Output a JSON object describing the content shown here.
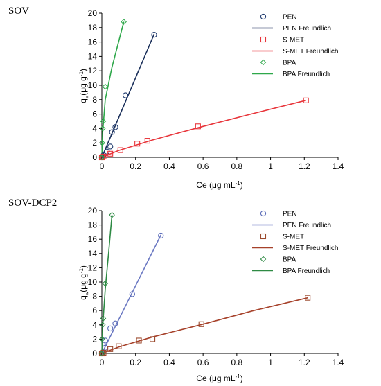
{
  "chart_data": [
    {
      "type": "scatter",
      "panel_title": "SOV",
      "xlabel": "Ce (μg mL",
      "xlabel_sup": "-1",
      "xlabel_tail": ")",
      "ylabel_main": "q",
      "ylabel_sub": "e",
      "ylabel_tail": "(μg g",
      "ylabel_sup": "-1",
      "ylabel_end": ")",
      "xlim": [
        0,
        1.4
      ],
      "ylim": [
        0,
        20
      ],
      "xticks": [
        0,
        0.2,
        0.4,
        0.6,
        0.8,
        1,
        1.2,
        1.4
      ],
      "xtick_labels": [
        "0",
        "0.2",
        "0.4",
        "0.6",
        "0.8",
        "1",
        "1.2",
        "1.4"
      ],
      "yticks": [
        0,
        2,
        4,
        6,
        8,
        10,
        12,
        14,
        16,
        18,
        20
      ],
      "ytick_labels": [
        "0",
        "2",
        "4",
        "6",
        "8",
        "10",
        "12",
        "14",
        "16",
        "18",
        "20"
      ],
      "legend_position": "top-right",
      "series": [
        {
          "name": "PEN",
          "marker": "circle",
          "color": "#1f3a6e",
          "points": [
            [
              0.0,
              0.0
            ],
            [
              0.01,
              0.3
            ],
            [
              0.03,
              0.8
            ],
            [
              0.05,
              1.5
            ],
            [
              0.06,
              3.5
            ],
            [
              0.08,
              4.2
            ],
            [
              0.14,
              8.6
            ],
            [
              0.31,
              17.0
            ]
          ]
        },
        {
          "name": "PEN Freundlich",
          "line": true,
          "color": "#1a2f5a",
          "points": [
            [
              0.0,
              0.0
            ],
            [
              0.31,
              17.1
            ]
          ]
        },
        {
          "name": "S-MET",
          "marker": "square",
          "color": "#e8343a",
          "points": [
            [
              0.0,
              0.0
            ],
            [
              0.01,
              0.1
            ],
            [
              0.05,
              0.5
            ],
            [
              0.11,
              1.0
            ],
            [
              0.21,
              1.9
            ],
            [
              0.27,
              2.3
            ],
            [
              0.57,
              4.3
            ],
            [
              1.21,
              7.9
            ]
          ]
        },
        {
          "name": "S-MET Freundlich",
          "line": true,
          "color": "#e8343a",
          "points": [
            [
              0.0,
              0.0
            ],
            [
              0.1,
              0.95
            ],
            [
              0.3,
              2.4
            ],
            [
              0.6,
              4.3
            ],
            [
              0.9,
              6.1
            ],
            [
              1.21,
              7.9
            ]
          ]
        },
        {
          "name": "BPA",
          "marker": "diamond",
          "color": "#2ea84a",
          "points": [
            [
              0.0,
              0.0
            ],
            [
              0.002,
              2.0
            ],
            [
              0.005,
              4.0
            ],
            [
              0.008,
              5.0
            ],
            [
              0.02,
              9.8
            ],
            [
              0.13,
              18.8
            ]
          ]
        },
        {
          "name": "BPA Freundlich",
          "line": true,
          "color": "#2ea84a",
          "points": [
            [
              0.0,
              0.0
            ],
            [
              0.005,
              3.5
            ],
            [
              0.02,
              8.0
            ],
            [
              0.06,
              12.5
            ],
            [
              0.13,
              18.8
            ]
          ]
        }
      ]
    },
    {
      "type": "scatter",
      "panel_title": "SOV-DCP2",
      "xlabel": "Ce (μg mL",
      "xlabel_sup": "-1",
      "xlabel_tail": ")",
      "ylabel_main": "q",
      "ylabel_sub": "e",
      "ylabel_tail": "(μg g",
      "ylabel_sup": "-1",
      "ylabel_end": ")",
      "xlim": [
        0,
        1.4
      ],
      "ylim": [
        0,
        20
      ],
      "xticks": [
        0,
        0.2,
        0.4,
        0.6,
        0.8,
        1,
        1.2,
        1.4
      ],
      "xtick_labels": [
        "0",
        "0.2",
        "0.4",
        "0.6",
        "0.8",
        "1",
        "1.2",
        "1.4"
      ],
      "yticks": [
        0,
        2,
        4,
        6,
        8,
        10,
        12,
        14,
        16,
        18,
        20
      ],
      "ytick_labels": [
        "0",
        "2",
        "4",
        "6",
        "8",
        "10",
        "12",
        "14",
        "16",
        "18",
        "20"
      ],
      "legend_position": "top-right",
      "series": [
        {
          "name": "PEN",
          "marker": "circle",
          "color": "#5b6cb8",
          "points": [
            [
              0.0,
              0.0
            ],
            [
              0.02,
              0.8
            ],
            [
              0.02,
              1.8
            ],
            [
              0.05,
              3.5
            ],
            [
              0.08,
              4.2
            ],
            [
              0.18,
              8.3
            ],
            [
              0.35,
              16.5
            ]
          ]
        },
        {
          "name": "PEN Freundlich",
          "line": true,
          "color": "#6a78c2",
          "points": [
            [
              0.0,
              0.0
            ],
            [
              0.35,
              16.6
            ]
          ]
        },
        {
          "name": "S-MET",
          "marker": "square",
          "color": "#9b4a2e",
          "points": [
            [
              0.0,
              0.0
            ],
            [
              0.01,
              0.1
            ],
            [
              0.05,
              0.6
            ],
            [
              0.1,
              1.0
            ],
            [
              0.22,
              1.8
            ],
            [
              0.3,
              2.0
            ],
            [
              0.59,
              4.1
            ],
            [
              1.22,
              7.8
            ]
          ]
        },
        {
          "name": "S-MET Freundlich",
          "line": true,
          "color": "#a6412a",
          "points": [
            [
              0.0,
              0.0
            ],
            [
              0.1,
              0.9
            ],
            [
              0.3,
              2.3
            ],
            [
              0.6,
              4.1
            ],
            [
              0.9,
              6.0
            ],
            [
              1.22,
              7.8
            ]
          ]
        },
        {
          "name": "BPA",
          "marker": "diamond",
          "color": "#2e8a44",
          "points": [
            [
              0.0,
              0.0
            ],
            [
              0.002,
              2.0
            ],
            [
              0.005,
              4.0
            ],
            [
              0.008,
              4.9
            ],
            [
              0.02,
              9.8
            ],
            [
              0.06,
              19.4
            ]
          ]
        },
        {
          "name": "BPA Freundlich",
          "line": true,
          "color": "#2e8a44",
          "points": [
            [
              0.0,
              0.0
            ],
            [
              0.005,
              3.8
            ],
            [
              0.02,
              9.0
            ],
            [
              0.04,
              14.0
            ],
            [
              0.06,
              19.4
            ]
          ]
        }
      ]
    }
  ]
}
